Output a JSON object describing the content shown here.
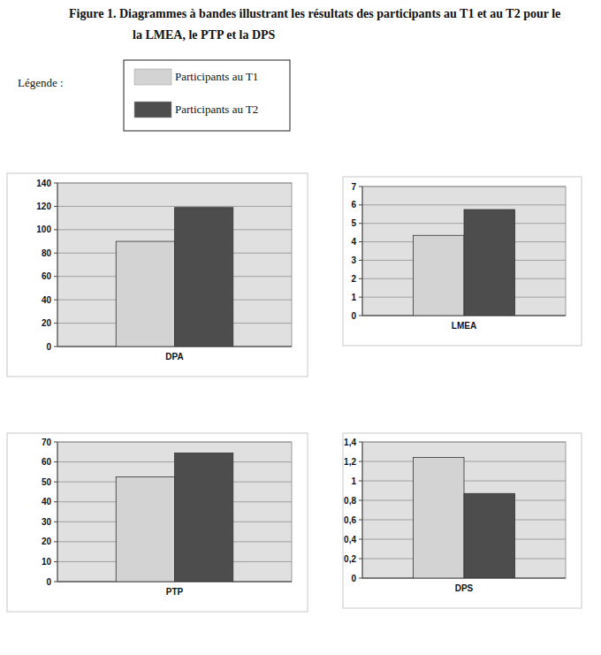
{
  "figure": {
    "title": [
      "Figure 1.  Diagrammes à bandes illustrant les résultats des participants au T1 et au T2 pour le",
      "la LMEA, le PTP et la DPS"
    ],
    "legend_title": "Légende :"
  },
  "chart_data": [
    {
      "type": "bar",
      "categories": [
        "DPA"
      ],
      "ylim": [
        0,
        140
      ],
      "yticks": [
        0,
        20,
        40,
        60,
        80,
        100,
        120,
        140
      ],
      "grid": true,
      "series": [
        {
          "name": "Participants au T1",
          "color": "#d3d3d3",
          "values": [
            90
          ]
        },
        {
          "name": "Participants au T2",
          "color": "#4d4d4d",
          "values": [
            119
          ]
        }
      ]
    },
    {
      "type": "bar",
      "categories": [
        "LMEA"
      ],
      "ylim": [
        0,
        7
      ],
      "yticks": [
        0,
        1,
        2,
        3,
        4,
        5,
        6,
        7
      ],
      "grid": true,
      "series": [
        {
          "color": "#d3d3d3",
          "values": [
            4.35
          ]
        },
        {
          "color": "#4d4d4d",
          "values": [
            5.75
          ]
        }
      ]
    },
    {
      "type": "bar",
      "categories": [
        "PTP"
      ],
      "ylim": [
        0,
        70
      ],
      "yticks": [
        0,
        10,
        20,
        30,
        40,
        50,
        60,
        70
      ],
      "grid": true,
      "series": [
        {
          "color": "#d3d3d3",
          "values": [
            52.5
          ]
        },
        {
          "color": "#4d4d4d",
          "values": [
            64.5
          ]
        }
      ]
    },
    {
      "type": "bar",
      "categories": [
        "DPS"
      ],
      "ylim": [
        0,
        1.4
      ],
      "yticks": [
        0,
        {
          "value": 0.2,
          "label": "0,2"
        },
        {
          "value": 0.4,
          "label": "0,4"
        },
        {
          "value": 0.6,
          "label": "0,6"
        },
        {
          "value": 0.8,
          "label": "0,8"
        },
        1,
        {
          "value": 1.2,
          "label": "1,2"
        },
        {
          "value": 1.4,
          "label": "1,4"
        }
      ],
      "grid": true,
      "series": [
        {
          "color": "#d3d3d3",
          "values": [
            1.24
          ]
        },
        {
          "color": "#4d4d4d",
          "values": [
            0.87
          ]
        }
      ]
    }
  ]
}
